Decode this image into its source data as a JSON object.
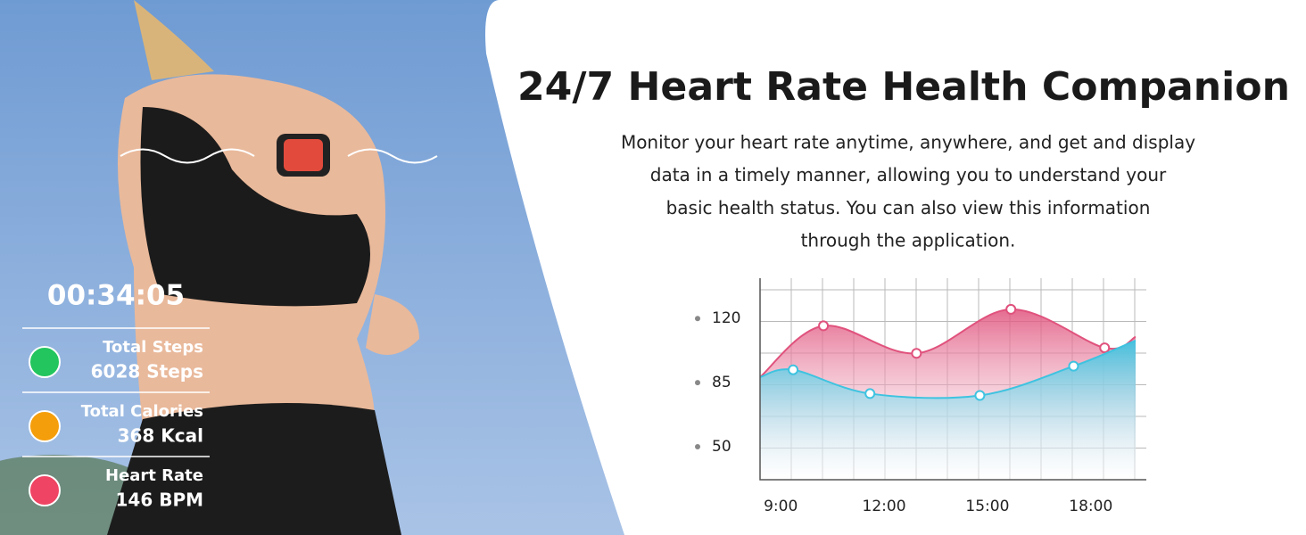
{
  "header": {
    "title": "24/7 Heart Rate Health Companion",
    "description": [
      "Monitor your heart rate anytime, anywhere, and get and display",
      "data in a timely manner, allowing you to understand your",
      "basic health status. You can also view this information",
      "through the application."
    ]
  },
  "stats": {
    "timer": "00:34:05",
    "items": [
      {
        "label": "Total Steps",
        "value": "6028 Steps",
        "color": "#22c55e"
      },
      {
        "label": "Total Calories",
        "value": "368 Kcal",
        "color": "#f59e0b"
      },
      {
        "label": "Heart Rate",
        "value": "146 BPM",
        "color": "#ef4463"
      }
    ]
  },
  "chart": {
    "type": "line",
    "xlim": [
      8.4,
      19.3
    ],
    "ylim": [
      32,
      142
    ],
    "xticks": [
      {
        "value": 9,
        "label": "9:00"
      },
      {
        "value": 12,
        "label": "12:00"
      },
      {
        "value": 15,
        "label": "15:00"
      },
      {
        "value": 18,
        "label": "18:00"
      }
    ],
    "yticks": [
      50,
      85,
      120
    ],
    "series": [
      {
        "color": "#e0527d",
        "x": [
          8.4,
          10.24,
          12.94,
          15.68,
          18.4,
          19.3
        ],
        "values": [
          88,
          116,
          101,
          125,
          104,
          110
        ]
      },
      {
        "color": "#3ec3e0",
        "x": [
          8.4,
          9.36,
          11.59,
          14.78,
          17.5,
          19.3
        ],
        "values": [
          88,
          92,
          79,
          78,
          94,
          108
        ]
      }
    ]
  }
}
